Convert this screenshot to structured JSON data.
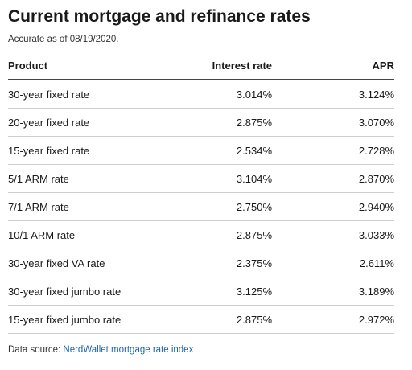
{
  "title": "Current mortgage and refinance rates",
  "subtitle": "Accurate as of 08/19/2020.",
  "table": {
    "headers": {
      "product": "Product",
      "interest_rate": "Interest rate",
      "apr": "APR"
    },
    "rows": [
      {
        "product": "30-year fixed rate",
        "interest_rate": "3.014%",
        "apr": "3.124%"
      },
      {
        "product": "20-year fixed rate",
        "interest_rate": "2.875%",
        "apr": "3.070%"
      },
      {
        "product": "15-year fixed rate",
        "interest_rate": "2.534%",
        "apr": "2.728%"
      },
      {
        "product": "5/1 ARM rate",
        "interest_rate": "3.104%",
        "apr": "2.870%"
      },
      {
        "product": "7/1 ARM rate",
        "interest_rate": "2.750%",
        "apr": "2.940%"
      },
      {
        "product": "10/1 ARM rate",
        "interest_rate": "2.875%",
        "apr": "3.033%"
      },
      {
        "product": "30-year fixed VA rate",
        "interest_rate": "2.375%",
        "apr": "2.611%"
      },
      {
        "product": "30-year fixed jumbo rate",
        "interest_rate": "3.125%",
        "apr": "3.189%"
      },
      {
        "product": "15-year fixed jumbo rate",
        "interest_rate": "2.875%",
        "apr": "2.972%"
      }
    ]
  },
  "footer": {
    "source_prefix": "Data source: ",
    "source_link": "NerdWallet mortgage rate index"
  },
  "colors": {
    "text": "#1a1a1a",
    "link": "#1f64a8",
    "header_rule": "#444444",
    "row_rule": "#cfcfcf"
  }
}
